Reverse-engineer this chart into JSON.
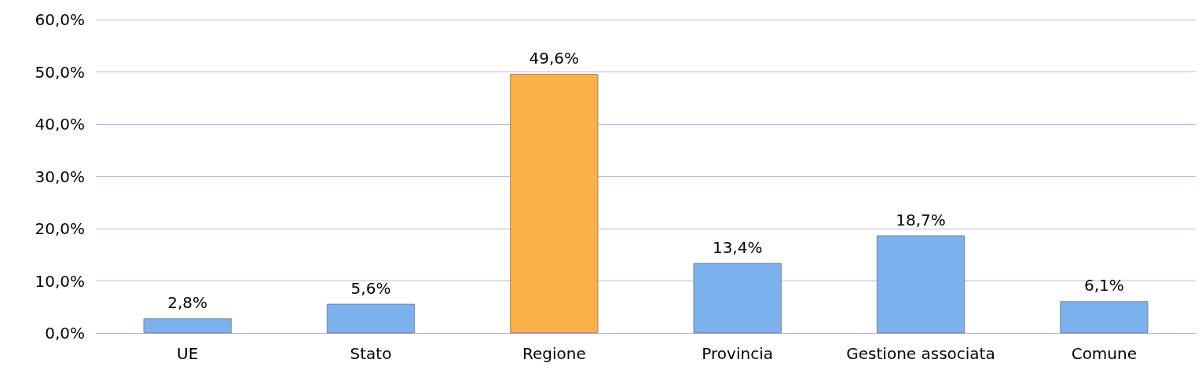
{
  "chart_data": {
    "type": "bar",
    "categories": [
      "UE",
      "Stato",
      "Regione",
      "Provincia",
      "Gestione associata",
      "Comune"
    ],
    "values": [
      2.8,
      5.6,
      49.6,
      13.4,
      18.7,
      6.1
    ],
    "colors": [
      "#7db1ee",
      "#7db1ee",
      "#fbb04a",
      "#7db1ee",
      "#7db1ee",
      "#7db1ee"
    ],
    "value_labels": [
      "2,8%",
      "5,6%",
      "49,6%",
      "13,4%",
      "18,7%",
      "6,1%"
    ],
    "ylim": [
      0,
      60
    ],
    "yticks": [
      {
        "value": 0,
        "label": "0,0%"
      },
      {
        "value": 10,
        "label": "10,0%"
      },
      {
        "value": 20,
        "label": "20,0%"
      },
      {
        "value": 30,
        "label": "30,0%"
      },
      {
        "value": 40,
        "label": "40,0%"
      },
      {
        "value": 50,
        "label": "50,0%"
      },
      {
        "value": 60,
        "label": "60,0%"
      }
    ],
    "grid": "y"
  }
}
